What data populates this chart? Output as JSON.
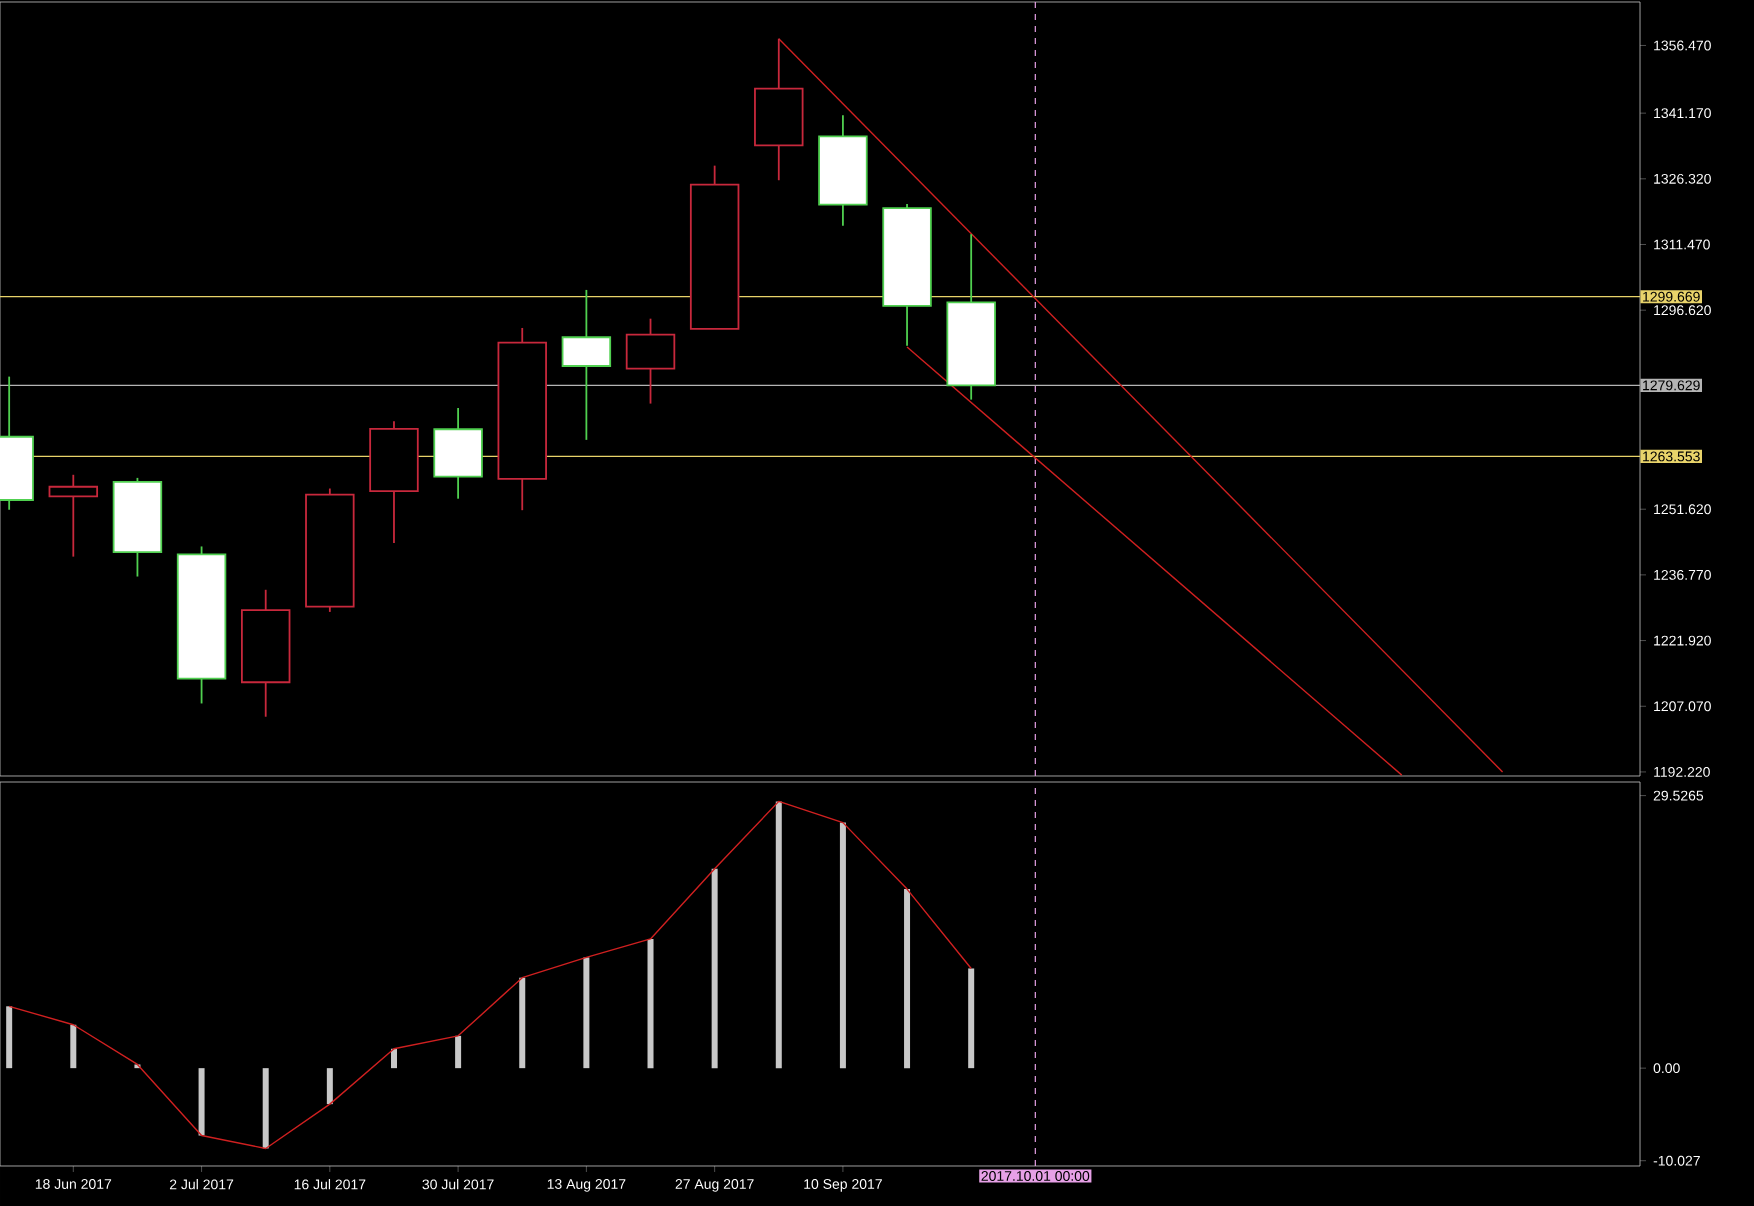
{
  "chart_data": [
    {
      "type": "candlestick",
      "x": [
        "2017-06-11",
        "2017-06-18",
        "2017-06-25",
        "2017-07-02",
        "2017-07-09",
        "2017-07-16",
        "2017-07-23",
        "2017-07-30",
        "2017-08-06",
        "2017-08-13",
        "2017-08-20",
        "2017-08-27",
        "2017-09-03",
        "2017-09-10",
        "2017-09-17",
        "2017-09-24"
      ],
      "ohlc": [
        [
          1268.0,
          1281.6,
          1251.5,
          1253.7
        ],
        [
          1254.5,
          1259.4,
          1240.9,
          1256.7
        ],
        [
          1257.8,
          1258.7,
          1236.4,
          1241.9
        ],
        [
          1241.4,
          1243.2,
          1207.7,
          1213.3
        ],
        [
          1212.5,
          1233.4,
          1204.7,
          1228.8
        ],
        [
          1229.6,
          1256.3,
          1228.4,
          1254.9
        ],
        [
          1255.7,
          1271.5,
          1244.0,
          1269.8
        ],
        [
          1269.7,
          1274.5,
          1254.0,
          1259.0
        ],
        [
          1258.5,
          1292.6,
          1251.4,
          1289.3
        ],
        [
          1290.5,
          1301.2,
          1267.3,
          1284.0
        ],
        [
          1283.4,
          1294.7,
          1275.5,
          1291.1
        ],
        [
          1292.4,
          1329.3,
          1292.4,
          1325.0
        ],
        [
          1333.9,
          1358.0,
          1326.0,
          1346.7
        ],
        [
          1335.9,
          1340.7,
          1315.7,
          1320.5
        ],
        [
          1319.7,
          1320.6,
          1288.6,
          1297.6
        ],
        [
          1298.4,
          1313.8,
          1276.4,
          1279.6
        ]
      ],
      "colors": [
        "#50d050",
        "#c8283c",
        "#50d050",
        "#50d050",
        "#c8283c",
        "#c8283c",
        "#c8283c",
        "#50d050",
        "#c8283c",
        "#50d050",
        "#c8283c",
        "#c8283c",
        "#c8283c",
        "#50d050",
        "#50d050",
        "#50d050"
      ],
      "series": [
        {
          "type": "line",
          "x": [
            "2017-09-03",
            "2017-11-21"
          ],
          "values": [
            1358.0,
            1192.2
          ],
          "color": "#d02020"
        },
        {
          "type": "line",
          "x": [
            "2017-09-17",
            "2017-11-10"
          ],
          "values": [
            1288.3,
            1191.5
          ],
          "color": "#d02020"
        }
      ],
      "xlim": [
        "2017-06-10",
        "2017-12-06"
      ],
      "ylim": [
        1191.3,
        1366.3
      ],
      "yticks": [
        {
          "value": 1356.47,
          "label": "1356.470"
        },
        {
          "value": 1341.17,
          "label": "1341.170"
        },
        {
          "value": 1326.32,
          "label": "1326.320"
        },
        {
          "value": 1311.47,
          "label": "1311.470"
        },
        {
          "value": 1296.62,
          "label": "1296.620"
        },
        {
          "value": 1251.62,
          "label": "1251.620"
        },
        {
          "value": 1236.77,
          "label": "1236.770"
        },
        {
          "value": 1221.92,
          "label": "1221.920"
        },
        {
          "value": 1207.07,
          "label": "1207.070"
        },
        {
          "value": 1192.22,
          "label": "1192.220"
        }
      ],
      "ref_lines": [
        {
          "axis": "y",
          "value": 1299.669,
          "label": "1299.669",
          "color": "#e8d36a"
        },
        {
          "axis": "y",
          "value": 1279.629,
          "label": "1279.629",
          "color": "#b4b4b4"
        },
        {
          "axis": "y",
          "value": 1263.553,
          "label": "1263.553",
          "color": "#e8d36a"
        },
        {
          "axis": "x",
          "value": "2017-10-01",
          "color": "#e6a0e6",
          "line_style": "dashed"
        }
      ],
      "tick_labels": "y"
    },
    {
      "type": "bar",
      "x": [
        "2017-06-11",
        "2017-06-18",
        "2017-06-25",
        "2017-07-02",
        "2017-07-09",
        "2017-07-16",
        "2017-07-23",
        "2017-07-30",
        "2017-08-06",
        "2017-08-13",
        "2017-08-20",
        "2017-08-27",
        "2017-09-03",
        "2017-09-10",
        "2017-09-17",
        "2017-09-24"
      ],
      "series": [
        {
          "type": "bar",
          "color": "#c8c8c8",
          "values": [
            6.7,
            4.7,
            0.4,
            -7.3,
            -8.7,
            -3.9,
            2.1,
            3.5,
            9.8,
            12.0,
            14.0,
            21.6,
            28.9,
            26.6,
            19.4,
            10.8
          ]
        },
        {
          "type": "line",
          "color": "#d02020",
          "values": [
            6.7,
            4.7,
            0.4,
            -7.3,
            -8.7,
            -3.9,
            2.1,
            3.5,
            9.8,
            12.0,
            14.0,
            21.6,
            28.9,
            26.6,
            19.4,
            10.8
          ]
        }
      ],
      "xlim": [
        "2017-06-10",
        "2017-12-06"
      ],
      "ylim": [
        -10.6,
        31.0
      ],
      "xticks": [
        {
          "value": "2017-06-18",
          "label": "18 Jun 2017"
        },
        {
          "value": "2017-07-02",
          "label": "2 Jul 2017"
        },
        {
          "value": "2017-07-16",
          "label": "16 Jul 2017"
        },
        {
          "value": "2017-07-30",
          "label": "30 Jul 2017"
        },
        {
          "value": "2017-08-13",
          "label": "13 Aug 2017"
        },
        {
          "value": "2017-08-27",
          "label": "27 Aug 2017"
        },
        {
          "value": "2017-09-10",
          "label": "10 Sep 2017"
        }
      ],
      "yticks": [
        29.5265,
        {
          "value": 0,
          "label": "0.00"
        },
        -10.027
      ],
      "ref_lines": [
        {
          "axis": "x",
          "value": "2017-10-01",
          "label": "2017.10.01 00:00",
          "color": "#e6a0e6",
          "line_style": "dashed"
        }
      ]
    }
  ]
}
